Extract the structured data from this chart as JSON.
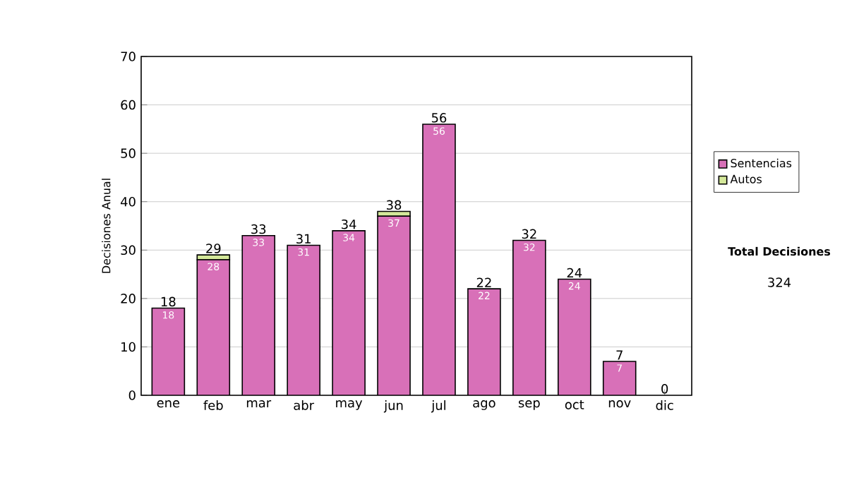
{
  "chart_data": {
    "type": "bar",
    "stacked": true,
    "ylabel": "Decisiones Anual",
    "categories": [
      "ene",
      "feb",
      "mar",
      "abr",
      "may",
      "jun",
      "jul",
      "ago",
      "sep",
      "oct",
      "nov",
      "dic"
    ],
    "series": [
      {
        "name": "Sentencias",
        "color": "#d870b8",
        "values": [
          18,
          28,
          33,
          31,
          34,
          37,
          56,
          22,
          32,
          24,
          7,
          0
        ],
        "value_labels": [
          "18",
          "28",
          "33",
          "31",
          "34",
          "37",
          "56",
          "22",
          "32",
          "24",
          "7",
          null
        ]
      },
      {
        "name": "Autos",
        "color": "#d4e89a",
        "values": [
          0,
          1,
          0,
          0,
          0,
          1,
          0,
          0,
          0,
          0,
          0,
          0
        ]
      }
    ],
    "totals": [
      "18",
      "29",
      "33",
      "31",
      "34",
      "38",
      "56",
      "22",
      "32",
      "24",
      "7",
      "0"
    ],
    "ylim": [
      0,
      70
    ],
    "yticks": [
      0,
      10,
      20,
      30,
      40,
      50,
      60,
      70
    ],
    "grid": "y",
    "legend": "right",
    "annotations": [
      "Total Decisiones",
      "324"
    ]
  }
}
